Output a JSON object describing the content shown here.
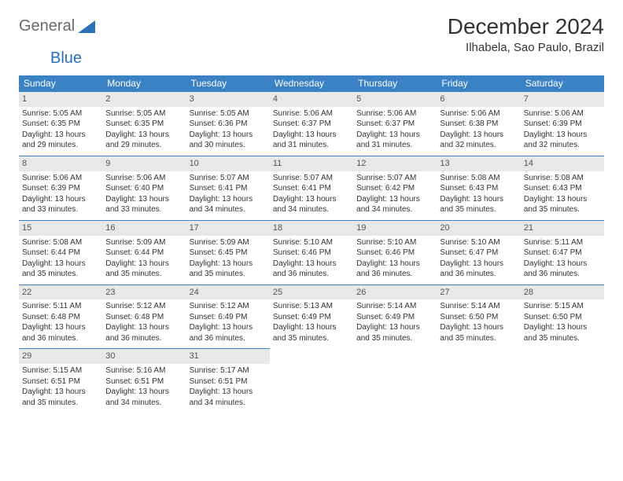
{
  "logo": {
    "text1": "General",
    "text2": "Blue"
  },
  "title": "December 2024",
  "location": "Ilhabela, Sao Paulo, Brazil",
  "colors": {
    "header_bg": "#3b82c4",
    "header_text": "#ffffff",
    "daynum_bg": "#e8e8e8",
    "border": "#3b82c4",
    "text": "#333333",
    "logo_gray": "#6a6a6a",
    "logo_blue": "#2a71b8"
  },
  "dayHeaders": [
    "Sunday",
    "Monday",
    "Tuesday",
    "Wednesday",
    "Thursday",
    "Friday",
    "Saturday"
  ],
  "days": [
    {
      "n": 1,
      "sr": "5:05 AM",
      "ss": "6:35 PM",
      "dl": "13 hours and 29 minutes."
    },
    {
      "n": 2,
      "sr": "5:05 AM",
      "ss": "6:35 PM",
      "dl": "13 hours and 29 minutes."
    },
    {
      "n": 3,
      "sr": "5:05 AM",
      "ss": "6:36 PM",
      "dl": "13 hours and 30 minutes."
    },
    {
      "n": 4,
      "sr": "5:06 AM",
      "ss": "6:37 PM",
      "dl": "13 hours and 31 minutes."
    },
    {
      "n": 5,
      "sr": "5:06 AM",
      "ss": "6:37 PM",
      "dl": "13 hours and 31 minutes."
    },
    {
      "n": 6,
      "sr": "5:06 AM",
      "ss": "6:38 PM",
      "dl": "13 hours and 32 minutes."
    },
    {
      "n": 7,
      "sr": "5:06 AM",
      "ss": "6:39 PM",
      "dl": "13 hours and 32 minutes."
    },
    {
      "n": 8,
      "sr": "5:06 AM",
      "ss": "6:39 PM",
      "dl": "13 hours and 33 minutes."
    },
    {
      "n": 9,
      "sr": "5:06 AM",
      "ss": "6:40 PM",
      "dl": "13 hours and 33 minutes."
    },
    {
      "n": 10,
      "sr": "5:07 AM",
      "ss": "6:41 PM",
      "dl": "13 hours and 34 minutes."
    },
    {
      "n": 11,
      "sr": "5:07 AM",
      "ss": "6:41 PM",
      "dl": "13 hours and 34 minutes."
    },
    {
      "n": 12,
      "sr": "5:07 AM",
      "ss": "6:42 PM",
      "dl": "13 hours and 34 minutes."
    },
    {
      "n": 13,
      "sr": "5:08 AM",
      "ss": "6:43 PM",
      "dl": "13 hours and 35 minutes."
    },
    {
      "n": 14,
      "sr": "5:08 AM",
      "ss": "6:43 PM",
      "dl": "13 hours and 35 minutes."
    },
    {
      "n": 15,
      "sr": "5:08 AM",
      "ss": "6:44 PM",
      "dl": "13 hours and 35 minutes."
    },
    {
      "n": 16,
      "sr": "5:09 AM",
      "ss": "6:44 PM",
      "dl": "13 hours and 35 minutes."
    },
    {
      "n": 17,
      "sr": "5:09 AM",
      "ss": "6:45 PM",
      "dl": "13 hours and 35 minutes."
    },
    {
      "n": 18,
      "sr": "5:10 AM",
      "ss": "6:46 PM",
      "dl": "13 hours and 36 minutes."
    },
    {
      "n": 19,
      "sr": "5:10 AM",
      "ss": "6:46 PM",
      "dl": "13 hours and 36 minutes."
    },
    {
      "n": 20,
      "sr": "5:10 AM",
      "ss": "6:47 PM",
      "dl": "13 hours and 36 minutes."
    },
    {
      "n": 21,
      "sr": "5:11 AM",
      "ss": "6:47 PM",
      "dl": "13 hours and 36 minutes."
    },
    {
      "n": 22,
      "sr": "5:11 AM",
      "ss": "6:48 PM",
      "dl": "13 hours and 36 minutes."
    },
    {
      "n": 23,
      "sr": "5:12 AM",
      "ss": "6:48 PM",
      "dl": "13 hours and 36 minutes."
    },
    {
      "n": 24,
      "sr": "5:12 AM",
      "ss": "6:49 PM",
      "dl": "13 hours and 36 minutes."
    },
    {
      "n": 25,
      "sr": "5:13 AM",
      "ss": "6:49 PM",
      "dl": "13 hours and 35 minutes."
    },
    {
      "n": 26,
      "sr": "5:14 AM",
      "ss": "6:49 PM",
      "dl": "13 hours and 35 minutes."
    },
    {
      "n": 27,
      "sr": "5:14 AM",
      "ss": "6:50 PM",
      "dl": "13 hours and 35 minutes."
    },
    {
      "n": 28,
      "sr": "5:15 AM",
      "ss": "6:50 PM",
      "dl": "13 hours and 35 minutes."
    },
    {
      "n": 29,
      "sr": "5:15 AM",
      "ss": "6:51 PM",
      "dl": "13 hours and 35 minutes."
    },
    {
      "n": 30,
      "sr": "5:16 AM",
      "ss": "6:51 PM",
      "dl": "13 hours and 34 minutes."
    },
    {
      "n": 31,
      "sr": "5:17 AM",
      "ss": "6:51 PM",
      "dl": "13 hours and 34 minutes."
    }
  ],
  "labels": {
    "sunrise": "Sunrise:",
    "sunset": "Sunset:",
    "daylight": "Daylight:"
  }
}
